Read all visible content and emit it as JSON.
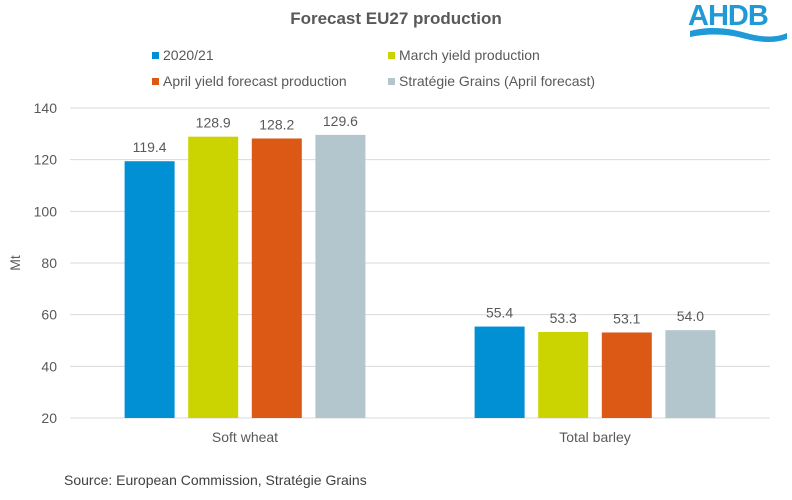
{
  "logo": {
    "text": "AHDB",
    "color": "#1f9ad6"
  },
  "chart_data": {
    "type": "bar",
    "title": "Forecast EU27 production",
    "xlabel": "",
    "ylabel": "Mt",
    "ylim": [
      20,
      140
    ],
    "yticks": [
      20,
      40,
      60,
      80,
      100,
      120,
      140
    ],
    "grid": true,
    "legend_position": "top",
    "categories": [
      "Soft wheat",
      "Total barley"
    ],
    "series": [
      {
        "name": "2020/21",
        "color": "#0290d4",
        "values": [
          119.4,
          55.4
        ],
        "labels": [
          "119.4",
          "55.4"
        ]
      },
      {
        "name": "March yield production",
        "color": "#cbd300",
        "values": [
          128.9,
          53.3
        ],
        "labels": [
          "128.9",
          "53.3"
        ]
      },
      {
        "name": "April yield forecast production",
        "color": "#db5915",
        "values": [
          128.2,
          53.1
        ],
        "labels": [
          "128.2",
          "53.1"
        ]
      },
      {
        "name": "Stratégie Grains (April forecast)",
        "color": "#b3c6cd",
        "values": [
          129.6,
          54.0
        ],
        "labels": [
          "129.6",
          "54.0"
        ]
      }
    ]
  },
  "source": "Source: European Commission, Stratégie Grains"
}
